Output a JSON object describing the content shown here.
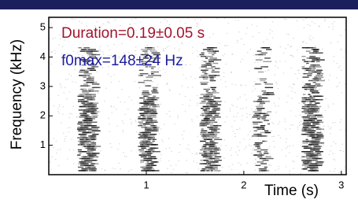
{
  "chart_data": {
    "type": "spectrogram",
    "x_label": "Time (s)",
    "y_label": "Frequency (kHz)",
    "xlim": [
      0,
      3.05
    ],
    "xticks": [
      1,
      2,
      3
    ],
    "ylim": [
      0,
      5.35
    ],
    "yticks": [
      1,
      2,
      3,
      4,
      5
    ],
    "annotations": [
      {
        "text": "Duration=0.19±0.05 s",
        "color": "#a3142e"
      },
      {
        "text": "f0max=148±24 Hz",
        "color": "#1c1ca0"
      }
    ]
  }
}
